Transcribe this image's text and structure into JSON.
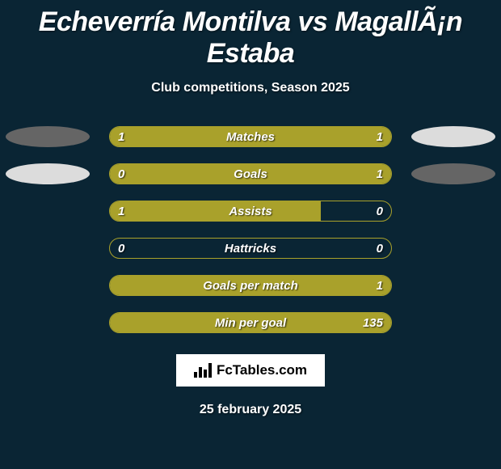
{
  "background_color": "#0a2534",
  "title": "Echeverría Montilva vs MagallÃ¡n Estaba",
  "subtitle": "Club competitions, Season 2025",
  "colors": {
    "olive": "#a9a12b",
    "dark_ellipse": "#656565",
    "light_ellipse": "#dcdcdc",
    "bar_border": "#a9a12b",
    "text_white": "#ffffff"
  },
  "stats": [
    {
      "label": "Matches",
      "left_value": "1",
      "right_value": "1",
      "left_pct": 50,
      "right_fill": true,
      "left_ellipse_color": "#656565",
      "right_ellipse_color": "#dcdcdc",
      "show_ellipses": true
    },
    {
      "label": "Goals",
      "left_value": "0",
      "right_value": "1",
      "left_pct": 18,
      "right_fill": true,
      "left_ellipse_color": "#dcdcdc",
      "right_ellipse_color": "#656565",
      "show_ellipses": true
    },
    {
      "label": "Assists",
      "left_value": "1",
      "right_value": "0",
      "left_pct": 75,
      "right_fill": false,
      "left_ellipse_color": "",
      "right_ellipse_color": "",
      "show_ellipses": false
    },
    {
      "label": "Hattricks",
      "left_value": "0",
      "right_value": "0",
      "left_pct": 0,
      "right_fill": false,
      "left_ellipse_color": "",
      "right_ellipse_color": "",
      "show_ellipses": false
    },
    {
      "label": "Goals per match",
      "left_value": "",
      "right_value": "1",
      "left_pct": 100,
      "right_fill": false,
      "left_ellipse_color": "",
      "right_ellipse_color": "",
      "show_ellipses": false
    },
    {
      "label": "Min per goal",
      "left_value": "",
      "right_value": "135",
      "left_pct": 100,
      "right_fill": false,
      "left_ellipse_color": "",
      "right_ellipse_color": "",
      "show_ellipses": false
    }
  ],
  "badge_text": "FcTables.com",
  "date": "25 february 2025"
}
